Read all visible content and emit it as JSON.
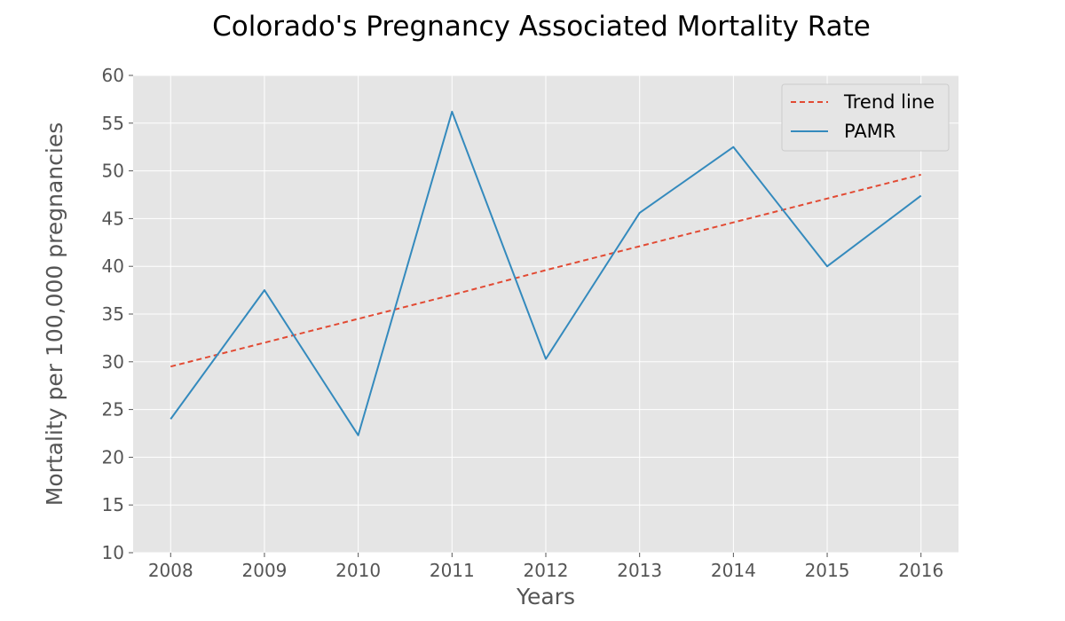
{
  "chart_data": {
    "type": "line",
    "title": "Colorado's Pregnancy Associated Mortality Rate",
    "xlabel": "Years",
    "ylabel": "Mortality per 100,000 pregnancies",
    "x": [
      2008,
      2009,
      2010,
      2011,
      2012,
      2013,
      2014,
      2015,
      2016
    ],
    "xlim": [
      2007.6,
      2016.4
    ],
    "ylim": [
      10,
      60
    ],
    "yticks": [
      10,
      15,
      20,
      25,
      30,
      35,
      40,
      45,
      50,
      55,
      60
    ],
    "grid": true,
    "legend_position": "top-right",
    "series": [
      {
        "name": "Trend line",
        "style": "dashed",
        "color": "#e24a33",
        "values": [
          29.5,
          32.0,
          34.5,
          37.0,
          39.6,
          42.1,
          44.6,
          47.1,
          49.6
        ]
      },
      {
        "name": "PAMR",
        "style": "solid",
        "color": "#348abd",
        "values": [
          24.0,
          37.5,
          22.3,
          56.2,
          30.3,
          45.6,
          52.5,
          40.0,
          47.4
        ]
      }
    ],
    "colors": {
      "plot_background": "#e5e5e5",
      "grid": "#ffffff"
    }
  }
}
